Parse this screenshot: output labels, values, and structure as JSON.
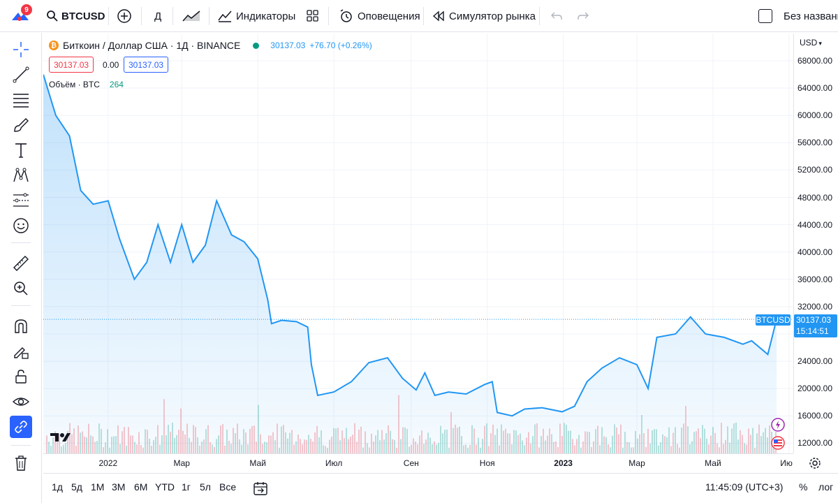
{
  "topbar": {
    "notification_count": "9",
    "symbol": "BTCUSD",
    "interval": "Д",
    "indicators_label": "Индикаторы",
    "alerts_label": "Оповещения",
    "replay_label": "Симулятор рынка",
    "layout_name": "Без названия"
  },
  "legend": {
    "title": "Биткоин / Доллар США · 1Д · BINANCE",
    "last_price": "30137.03",
    "change": "+76.70 (+0.26%)",
    "bid": "30137.03",
    "spread": "0.00",
    "ask": "30137.03",
    "volume_label": "Объём · BTC",
    "volume_value": "264"
  },
  "price_axis": {
    "currency": "USD",
    "ticks": [
      "68000.00",
      "64000.00",
      "60000.00",
      "56000.00",
      "52000.00",
      "48000.00",
      "44000.00",
      "40000.00",
      "36000.00",
      "32000.00",
      "28000.00",
      "24000.00",
      "20000.00",
      "16000.00",
      "12000.00"
    ]
  },
  "price_tag": {
    "symbol": "BTCUSD",
    "price": "30137.03",
    "countdown": "15:14:51"
  },
  "time_axis": {
    "ticks": [
      "2022",
      "Мар",
      "Май",
      "Июл",
      "Сен",
      "Ноя",
      "2023",
      "Мар",
      "Май",
      "Ию"
    ]
  },
  "bottom": {
    "ranges": [
      "1д",
      "5д",
      "1M",
      "3M",
      "6M",
      "YTD",
      "1г",
      "5л",
      "Все"
    ],
    "clock": "11:45:09 (UTC+3)",
    "percent": "%",
    "log": "лог"
  },
  "colors": {
    "accent": "#2962ff",
    "line": "#2196f3",
    "up": "#089981",
    "down": "#f23645"
  },
  "chart_data": {
    "type": "area",
    "title": "Биткоин / Доллар США · 1Д · BINANCE",
    "series": [
      {
        "name": "BTCUSD",
        "x": [
          "2021-11-10",
          "2021-11-20",
          "2021-12-01",
          "2021-12-10",
          "2021-12-20",
          "2022-01-01",
          "2022-01-10",
          "2022-01-22",
          "2022-02-01",
          "2022-02-10",
          "2022-02-20",
          "2022-03-01",
          "2022-03-10",
          "2022-03-20",
          "2022-03-29",
          "2022-04-10",
          "2022-04-20",
          "2022-05-01",
          "2022-05-09",
          "2022-05-12",
          "2022-05-20",
          "2022-06-01",
          "2022-06-10",
          "2022-06-13",
          "2022-06-18",
          "2022-07-01",
          "2022-07-15",
          "2022-07-29",
          "2022-08-13",
          "2022-08-25",
          "2022-09-05",
          "2022-09-12",
          "2022-09-20",
          "2022-10-01",
          "2022-10-15",
          "2022-10-30",
          "2022-11-05",
          "2022-11-09",
          "2022-11-21",
          "2022-12-01",
          "2022-12-15",
          "2022-12-31",
          "2023-01-10",
          "2023-01-20",
          "2023-02-01",
          "2023-02-15",
          "2023-03-01",
          "2023-03-10",
          "2023-03-17",
          "2023-04-01",
          "2023-04-13",
          "2023-04-25",
          "2023-05-10",
          "2023-05-25",
          "2023-06-01",
          "2023-06-14",
          "2023-06-21"
        ],
        "values": [
          66000,
          60000,
          57000,
          49000,
          47000,
          47500,
          42000,
          36000,
          38500,
          44000,
          38500,
          44000,
          38500,
          41000,
          47500,
          42500,
          41500,
          39000,
          33000,
          29500,
          30000,
          29800,
          29000,
          23500,
          19000,
          19500,
          21000,
          23800,
          24500,
          21500,
          19800,
          22300,
          19000,
          19500,
          19200,
          20600,
          21000,
          16500,
          16000,
          17000,
          17200,
          16600,
          17400,
          21000,
          23000,
          24500,
          23500,
          20000,
          27500,
          28000,
          30500,
          28000,
          27500,
          26500,
          27000,
          25000,
          30137
        ]
      }
    ],
    "xlabel": "",
    "ylabel": "USD",
    "ylim": [
      10000,
      70000
    ]
  }
}
